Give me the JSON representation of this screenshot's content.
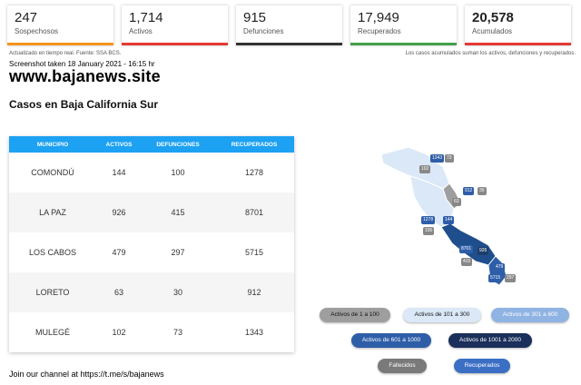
{
  "stats": [
    {
      "value": "247",
      "label": "Sospechosos",
      "color": "#f7941d"
    },
    {
      "value": "1,714",
      "label": "Activos",
      "color": "#e53935"
    },
    {
      "value": "915",
      "label": "Defunciones",
      "color": "#333333"
    },
    {
      "value": "17,949",
      "label": "Recuperados",
      "color": "#43a047"
    },
    {
      "value": "20,578",
      "label": "Acumulados",
      "color": "#e53935"
    }
  ],
  "notes": {
    "left": "Actualizado en tiempo real. Fuente: SSA BCS.",
    "right": "Los casos acumulados suman los activos, defunciones y recuperados."
  },
  "screenshot_text": "Screenshot taken 18 January 2021 - 16:15 hr",
  "site": "www.bajanews.site",
  "heading": "Casos en Baja California Sur",
  "table": {
    "headers": [
      "MUNICIPIO",
      "ACTIVOS",
      "DEFUNCIONES",
      "RECUPERADOS"
    ],
    "rows": [
      [
        "COMONDÚ",
        "144",
        "100",
        "1278"
      ],
      [
        "LA PAZ",
        "926",
        "415",
        "8701"
      ],
      [
        "LOS CABOS",
        "479",
        "297",
        "5715"
      ],
      [
        "LORETO",
        "63",
        "30",
        "912"
      ],
      [
        "MULEGÉ",
        "102",
        "73",
        "1343"
      ]
    ]
  },
  "map_tags": [
    "1343",
    "73",
    "102",
    "912",
    "30",
    "63",
    "1278",
    "144",
    "100",
    "8701",
    "926",
    "415",
    "479",
    "5715",
    "297"
  ],
  "legend": [
    {
      "label": "Activos de 1 a 100",
      "bg": "#9e9e9e",
      "fg": "#111111"
    },
    {
      "label": "Activos de 101 a 300",
      "bg": "#dbe8f7",
      "fg": "#111111"
    },
    {
      "label": "Activos de 301 a 600",
      "bg": "#8fb3e3",
      "fg": "#ffffff"
    },
    {
      "label": "Activos de 601 a 1000",
      "bg": "#2e5ea8",
      "fg": "#ffffff"
    },
    {
      "label": "Activos de 1001 a 2000",
      "bg": "#1a2f5a",
      "fg": "#ffffff"
    },
    {
      "label": "Fallecidos",
      "bg": "#7a7a7a",
      "fg": "#ffffff"
    },
    {
      "label": "Recuperados",
      "bg": "#3b6fc4",
      "fg": "#ffffff"
    }
  ],
  "footer": "Join our channel at  https://t.me/s/bajanews"
}
